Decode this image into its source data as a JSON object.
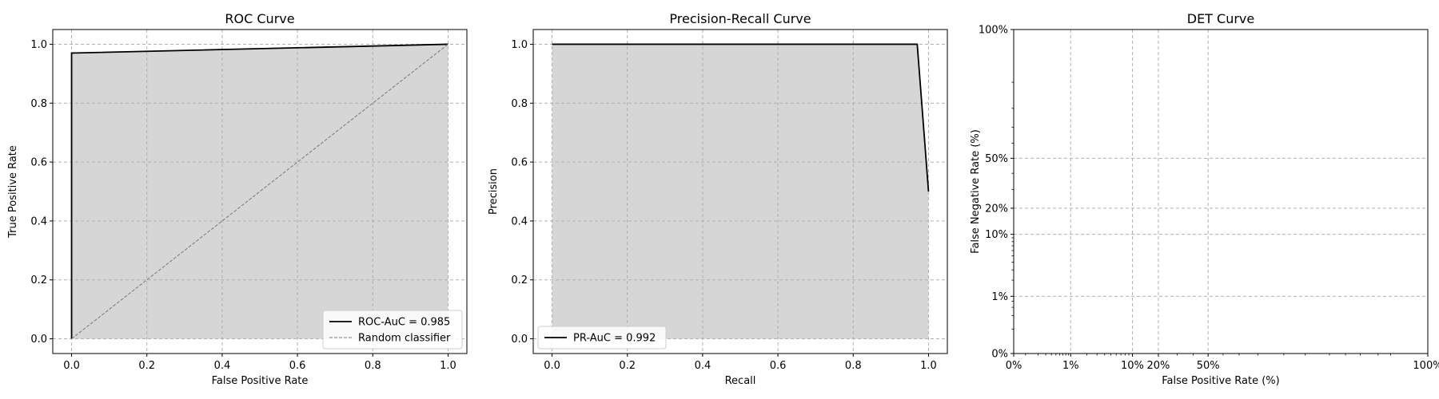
{
  "colors": {
    "curve": "#000000",
    "fill": "#d6d6d6",
    "grid": "#b0b0b0",
    "random": "#808080"
  },
  "chart_data": [
    {
      "type": "area",
      "title": "ROC Curve",
      "xlabel": "False Positive Rate",
      "ylabel": "True Positive Rate",
      "xlim": [
        -0.05,
        1.05
      ],
      "ylim": [
        -0.05,
        1.05
      ],
      "xticks": [
        0.0,
        0.2,
        0.4,
        0.6,
        0.8,
        1.0
      ],
      "yticks": [
        0.0,
        0.2,
        0.4,
        0.6,
        0.8,
        1.0
      ],
      "xtick_labels": [
        "0.0",
        "0.2",
        "0.4",
        "0.6",
        "0.8",
        "1.0"
      ],
      "ytick_labels": [
        "0.0",
        "0.2",
        "0.4",
        "0.6",
        "0.8",
        "1.0"
      ],
      "grid": true,
      "legend_position": "bottom-right",
      "series": [
        {
          "name": "ROC-AuC = 0.985",
          "style": "solid",
          "fill": true,
          "x": [
            0.0,
            0.0,
            1.0
          ],
          "y": [
            0.0,
            0.97,
            1.0
          ]
        },
        {
          "name": "Random classifier",
          "style": "dashed",
          "fill": false,
          "x": [
            0.0,
            1.0
          ],
          "y": [
            0.0,
            1.0
          ]
        }
      ]
    },
    {
      "type": "area",
      "title": "Precision-Recall Curve",
      "xlabel": "Recall",
      "ylabel": "Precision",
      "xlim": [
        -0.05,
        1.05
      ],
      "ylim": [
        -0.05,
        1.05
      ],
      "xticks": [
        0.0,
        0.2,
        0.4,
        0.6,
        0.8,
        1.0
      ],
      "yticks": [
        0.0,
        0.2,
        0.4,
        0.6,
        0.8,
        1.0
      ],
      "xtick_labels": [
        "0.0",
        "0.2",
        "0.4",
        "0.6",
        "0.8",
        "1.0"
      ],
      "ytick_labels": [
        "0.0",
        "0.2",
        "0.4",
        "0.6",
        "0.8",
        "1.0"
      ],
      "grid": true,
      "legend_position": "bottom-left",
      "series": [
        {
          "name": "PR-AuC = 0.992",
          "style": "solid",
          "fill": true,
          "x": [
            0.0,
            0.97,
            1.0
          ],
          "y": [
            1.0,
            1.0,
            0.5
          ]
        }
      ]
    },
    {
      "type": "line",
      "title": "DET Curve",
      "xlabel": "False Positive Rate (%)",
      "ylabel": "False Negative Rate (%)",
      "scale": "normal-deviate",
      "xlim": [
        0.0,
        0.9999
      ],
      "ylim": [
        0.0,
        1.0
      ],
      "xticks": [
        0.0,
        0.01,
        0.1,
        0.2,
        0.5,
        1.0
      ],
      "yticks": [
        0.0,
        0.01,
        0.1,
        0.2,
        0.5,
        1.0
      ],
      "xtick_labels": [
        "0%",
        "1%",
        "10%",
        "20%",
        "50%",
        "100%"
      ],
      "ytick_labels": [
        "0%",
        "1%",
        "10%",
        "20%",
        "50%",
        "100%"
      ],
      "grid": true,
      "series": []
    }
  ]
}
